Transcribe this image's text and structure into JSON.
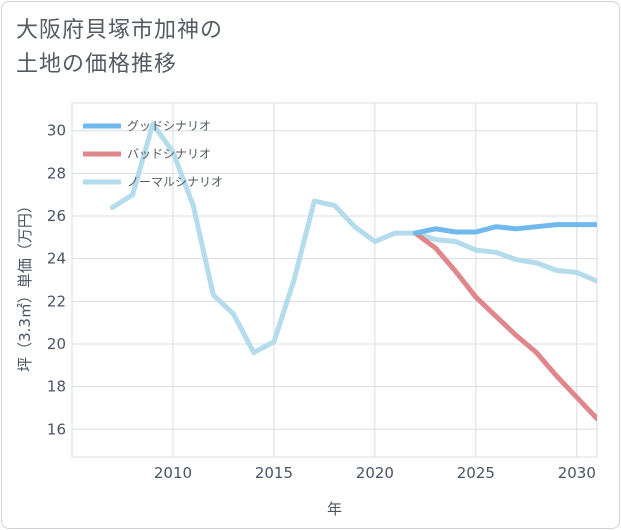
{
  "title": {
    "line1": "大阪府貝塚市加神の",
    "line2": "土地の価格推移"
  },
  "colors": {
    "good": "#6fb9ef",
    "bad": "#e0878d",
    "normal": "#b5dcec",
    "grid": "#d8dde3",
    "axis": "#4a5563"
  },
  "chart_data": {
    "type": "line",
    "title": "大阪府貝塚市加神の土地の価格推移",
    "xlabel": "年",
    "ylabel": "坪（3.3㎡）単価（万円）",
    "xlim": [
      2005,
      2031
    ],
    "ylim": [
      14.7,
      31.3
    ],
    "xticks": [
      2010,
      2015,
      2020,
      2025,
      2030
    ],
    "yticks": [
      16,
      18,
      20,
      22,
      24,
      26,
      28,
      30
    ],
    "grid": true,
    "legend_position": "top-left",
    "series": [
      {
        "key": "good",
        "name": "グッドシナリオ",
        "x": [
          2022,
          2023,
          2024,
          2025,
          2026,
          2027,
          2028,
          2029,
          2030,
          2031
        ],
        "y": [
          25.2,
          25.4,
          25.25,
          25.25,
          25.5,
          25.4,
          25.5,
          25.6,
          25.6,
          25.6
        ]
      },
      {
        "key": "bad",
        "name": "バッドシナリオ",
        "x": [
          2022,
          2023,
          2024,
          2025,
          2026,
          2027,
          2028,
          2029,
          2030,
          2031
        ],
        "y": [
          25.2,
          24.5,
          23.4,
          22.2,
          21.3,
          20.4,
          19.6,
          18.5,
          17.5,
          16.5
        ]
      },
      {
        "key": "normal",
        "name": "ノーマルシナリオ",
        "x": [
          2007,
          2008,
          2009,
          2010,
          2011,
          2012,
          2013,
          2014,
          2015,
          2016,
          2017,
          2018,
          2019,
          2020,
          2021,
          2022,
          2023,
          2024,
          2025,
          2026,
          2027,
          2028,
          2029,
          2030,
          2031
        ],
        "y": [
          26.4,
          27.0,
          30.3,
          29.0,
          26.5,
          22.3,
          21.4,
          19.6,
          20.1,
          23.0,
          26.7,
          26.5,
          25.5,
          24.8,
          25.2,
          25.2,
          24.9,
          24.8,
          24.4,
          24.3,
          23.95,
          23.8,
          23.45,
          23.35,
          22.95
        ]
      }
    ]
  }
}
